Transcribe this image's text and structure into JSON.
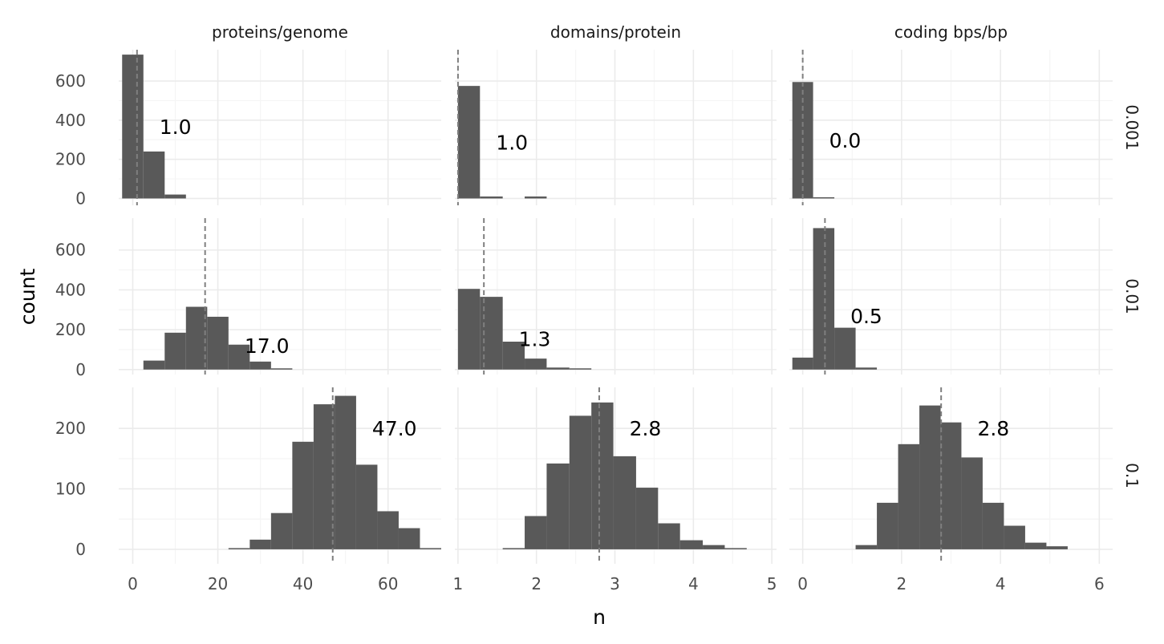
{
  "chart_data": {
    "type": "bar",
    "subtype": "faceted-histogram",
    "xlabel": "n",
    "ylabel": "count",
    "column_facets": [
      "proteins/genome",
      "domains/protein",
      "coding bps/bp"
    ],
    "row_facets": [
      "0.001",
      "0.01",
      "0.1"
    ],
    "grid": true,
    "legend": "none",
    "bar_color": "#595959",
    "grid_color": "#ebebeb",
    "dashed_line_color": "#7f7f7f",
    "x_scales": [
      {
        "xlim": [
          -3.3,
          72.5
        ],
        "ticks": [
          0,
          20,
          40,
          60
        ],
        "tick_labels": [
          "0",
          "20",
          "40",
          "60"
        ]
      },
      {
        "xlim": [
          0.96,
          5.06
        ],
        "ticks": [
          1,
          2,
          3,
          4,
          5
        ],
        "tick_labels": [
          "1",
          "2",
          "3",
          "4",
          "5"
        ]
      },
      {
        "xlim": [
          -0.27,
          6.27
        ],
        "ticks": [
          0,
          2,
          4,
          6
        ],
        "tick_labels": [
          "0",
          "2",
          "4",
          "6"
        ]
      }
    ],
    "y_scales": [
      {
        "ylim": [
          -35,
          760
        ],
        "ticks": [
          0,
          200,
          400,
          600
        ],
        "tick_labels": [
          "0",
          "200",
          "400",
          "600"
        ]
      },
      {
        "ylim": [
          -25,
          760
        ],
        "ticks": [
          0,
          200,
          400,
          600
        ],
        "tick_labels": [
          "0",
          "200",
          "400",
          "600"
        ]
      },
      {
        "ylim": [
          -24,
          268
        ],
        "ticks": [
          0,
          100,
          200
        ],
        "tick_labels": [
          "0",
          "100",
          "200"
        ]
      }
    ],
    "panels": [
      {
        "row": 0,
        "col": 0,
        "label": "1.0",
        "mean": 1.0,
        "bins": [
          [
            -2.5,
            2.5,
            735
          ],
          [
            2.5,
            7.5,
            240
          ],
          [
            7.5,
            12.5,
            20
          ]
        ]
      },
      {
        "row": 0,
        "col": 1,
        "label": "1.0",
        "mean": 1.0,
        "bins": [
          [
            1.0,
            1.28,
            575
          ],
          [
            1.28,
            1.57,
            10
          ],
          [
            1.57,
            1.85,
            0
          ],
          [
            1.85,
            2.13,
            10
          ]
        ]
      },
      {
        "row": 0,
        "col": 2,
        "label": "0.0",
        "mean": 0.0,
        "bins": [
          [
            -0.21,
            0.21,
            595
          ],
          [
            0.21,
            0.64,
            5
          ]
        ]
      },
      {
        "row": 1,
        "col": 0,
        "label": "17.0",
        "mean": 17.0,
        "bins": [
          [
            2.5,
            7.5,
            45
          ],
          [
            7.5,
            12.5,
            185
          ],
          [
            12.5,
            17.5,
            315
          ],
          [
            17.5,
            22.5,
            265
          ],
          [
            22.5,
            27.5,
            125
          ],
          [
            27.5,
            32.5,
            40
          ],
          [
            32.5,
            37.5,
            5
          ]
        ]
      },
      {
        "row": 1,
        "col": 1,
        "label": "1.3",
        "mean": 1.33,
        "bins": [
          [
            1.0,
            1.28,
            405
          ],
          [
            1.28,
            1.57,
            365
          ],
          [
            1.57,
            1.85,
            140
          ],
          [
            1.85,
            2.13,
            55
          ],
          [
            2.13,
            2.42,
            10
          ],
          [
            2.42,
            2.7,
            5
          ]
        ]
      },
      {
        "row": 1,
        "col": 2,
        "label": "0.5",
        "mean": 0.45,
        "bins": [
          [
            -0.21,
            0.21,
            60
          ],
          [
            0.21,
            0.64,
            710
          ],
          [
            0.64,
            1.07,
            210
          ],
          [
            1.07,
            1.5,
            10
          ]
        ]
      },
      {
        "row": 2,
        "col": 0,
        "label": "47.0",
        "mean": 47.0,
        "bins": [
          [
            22.5,
            27.5,
            1
          ],
          [
            27.5,
            32.5,
            16
          ],
          [
            32.5,
            37.5,
            60
          ],
          [
            37.5,
            42.5,
            178
          ],
          [
            42.5,
            47.5,
            240
          ],
          [
            47.5,
            52.5,
            254
          ],
          [
            52.5,
            57.5,
            140
          ],
          [
            57.5,
            62.5,
            63
          ],
          [
            62.5,
            67.5,
            35
          ],
          [
            67.5,
            72.5,
            2
          ]
        ]
      },
      {
        "row": 2,
        "col": 1,
        "label": "2.8",
        "mean": 2.8,
        "bins": [
          [
            1.57,
            1.85,
            1
          ],
          [
            1.85,
            2.13,
            55
          ],
          [
            2.13,
            2.42,
            142
          ],
          [
            2.42,
            2.7,
            221
          ],
          [
            2.7,
            2.98,
            243
          ],
          [
            2.98,
            3.27,
            154
          ],
          [
            3.27,
            3.55,
            102
          ],
          [
            3.55,
            3.83,
            43
          ],
          [
            3.83,
            4.12,
            15
          ],
          [
            4.12,
            4.4,
            7
          ],
          [
            4.4,
            4.68,
            2
          ]
        ]
      },
      {
        "row": 2,
        "col": 2,
        "label": "2.8",
        "mean": 2.8,
        "bins": [
          [
            1.07,
            1.5,
            7
          ],
          [
            1.5,
            1.93,
            77
          ],
          [
            1.93,
            2.36,
            174
          ],
          [
            2.36,
            2.79,
            238
          ],
          [
            2.79,
            3.21,
            210
          ],
          [
            3.21,
            3.64,
            152
          ],
          [
            3.64,
            4.07,
            77
          ],
          [
            4.07,
            4.5,
            39
          ],
          [
            4.5,
            4.93,
            11
          ],
          [
            4.93,
            5.36,
            5
          ]
        ]
      }
    ]
  }
}
